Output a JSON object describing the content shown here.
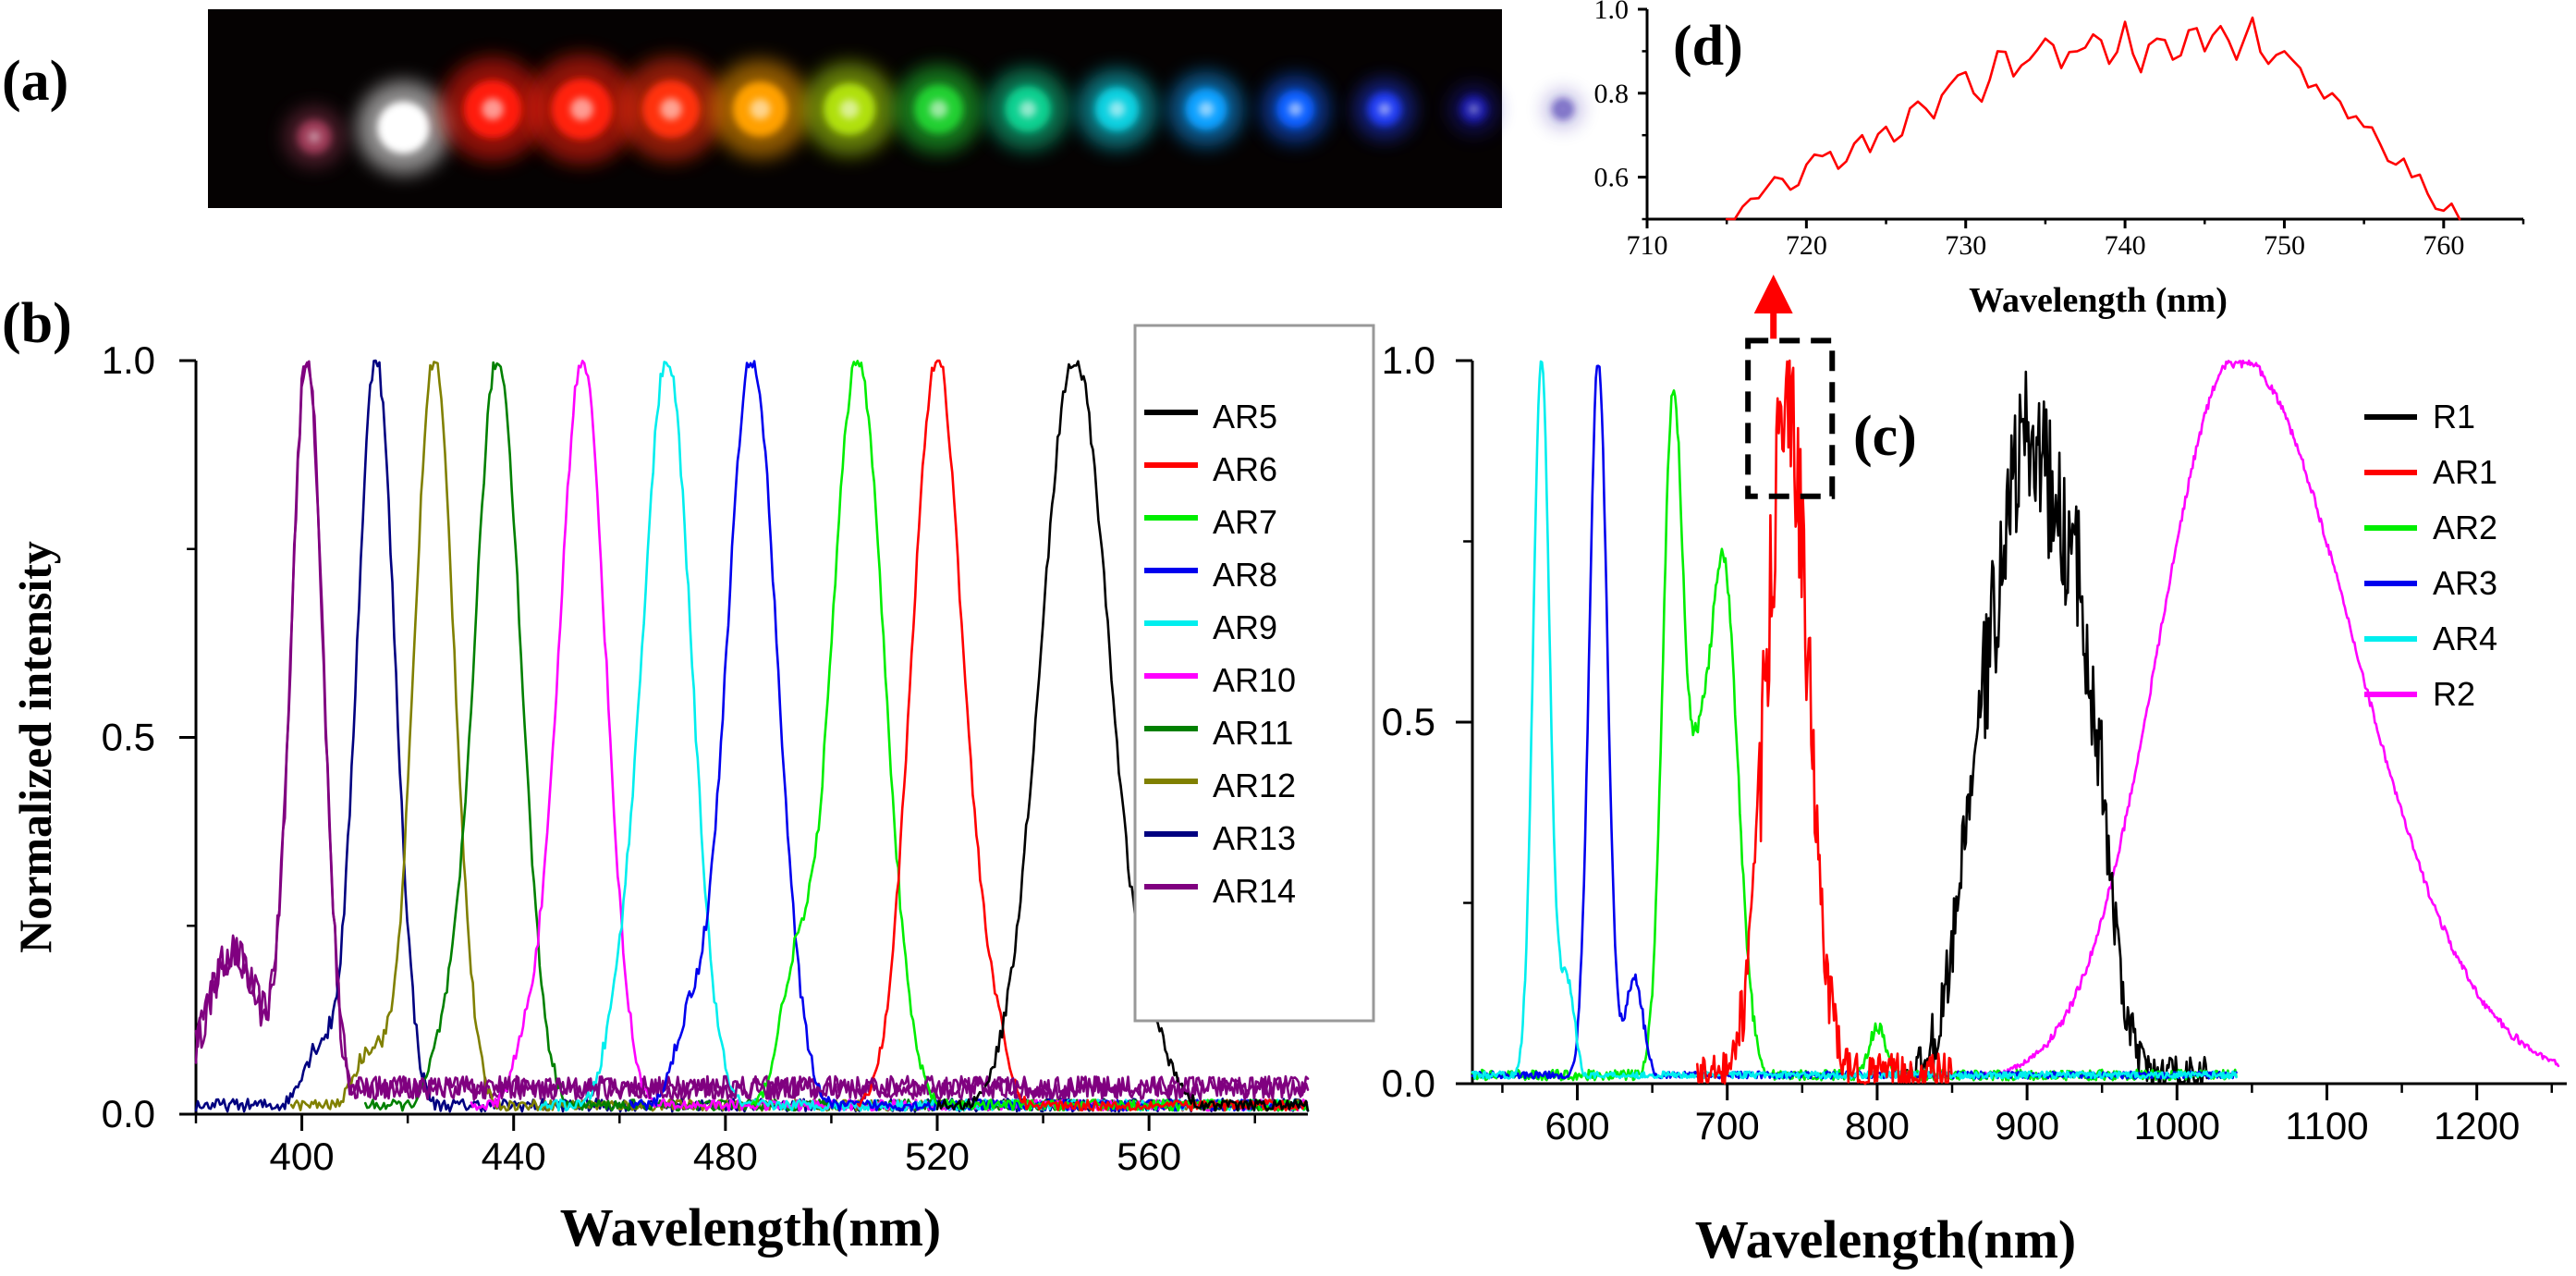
{
  "panel_labels": {
    "a": "(a)",
    "b": "(b)",
    "c": "(c)",
    "d": "(d)"
  },
  "photo": {
    "spots": [
      {
        "color": "#c04a6c",
        "size": 0.55,
        "brightness": 0.7
      },
      {
        "color": "#ffffff",
        "size": 0.85,
        "brightness": 1.0
      },
      {
        "color": "#ff1a0a",
        "size": 0.95,
        "brightness": 1.0
      },
      {
        "color": "#ff2010",
        "size": 1.0,
        "brightness": 1.0
      },
      {
        "color": "#ff3010",
        "size": 0.95,
        "brightness": 1.0
      },
      {
        "color": "#ffa000",
        "size": 0.9,
        "brightness": 1.0
      },
      {
        "color": "#b0e010",
        "size": 0.85,
        "brightness": 1.0
      },
      {
        "color": "#20d030",
        "size": 0.8,
        "brightness": 1.0
      },
      {
        "color": "#10d090",
        "size": 0.75,
        "brightness": 1.0
      },
      {
        "color": "#10d0e0",
        "size": 0.72,
        "brightness": 1.0
      },
      {
        "color": "#10a0ff",
        "size": 0.68,
        "brightness": 1.0
      },
      {
        "color": "#1060ff",
        "size": 0.62,
        "brightness": 1.0
      },
      {
        "color": "#2040ff",
        "size": 0.55,
        "brightness": 0.9
      },
      {
        "color": "#2020d0",
        "size": 0.45,
        "brightness": 0.7
      },
      {
        "color": "#2010a0",
        "size": 0.35,
        "brightness": 0.5
      }
    ]
  },
  "chart_data": [
    {
      "id": "b",
      "type": "line",
      "xlabel": "Wavelength(nm)",
      "ylabel": "Normalized intensity",
      "xlim": [
        380,
        590
      ],
      "ylim": [
        0.0,
        1.0
      ],
      "xticks": [
        400,
        440,
        480,
        520,
        560
      ],
      "yticks": [
        0.0,
        0.5,
        1.0
      ],
      "ytick_labels": [
        "0.0",
        "0.5",
        "1.0"
      ],
      "legend_position": "right",
      "series": [
        {
          "name": "AR5",
          "color": "#000000",
          "center": 546,
          "width": 6.5,
          "x_start": 520,
          "x_end": 590,
          "noise": 0.012,
          "shoulder": {
            "offset": 15,
            "width": 4,
            "amp": 0.06
          }
        },
        {
          "name": "AR6",
          "color": "#ff0000",
          "center": 520,
          "width": 4.8,
          "x_start": 505,
          "x_end": 590,
          "noise": 0.012,
          "shoulder": {
            "offset": 10,
            "width": 3,
            "amp": 0.09
          }
        },
        {
          "name": "AR7",
          "color": "#00ee00",
          "center": 505,
          "width": 5.0,
          "x_start": 485,
          "x_end": 590,
          "noise": 0.012,
          "shoulder": {
            "offset": -12,
            "width": 3,
            "amp": 0.16
          }
        },
        {
          "name": "AR8",
          "color": "#0000ee",
          "center": 485,
          "width": 4.8,
          "x_start": 462,
          "x_end": 590,
          "noise": 0.012,
          "shoulder": {
            "offset": -12,
            "width": 3,
            "amp": 0.1
          }
        },
        {
          "name": "AR9",
          "color": "#00eeee",
          "center": 469,
          "width": 4.6,
          "x_start": 445,
          "x_end": 590,
          "noise": 0.012,
          "shoulder": {
            "offset": -9,
            "width": 3,
            "amp": 0.08
          }
        },
        {
          "name": "AR10",
          "color": "#ff00ff",
          "center": 453,
          "width": 4.4,
          "x_start": 432,
          "x_end": 590,
          "noise": 0.012,
          "shoulder": {
            "offset": -10,
            "width": 3,
            "amp": 0.08
          }
        },
        {
          "name": "AR11",
          "color": "#008000",
          "center": 437,
          "width": 4.4,
          "x_start": 412,
          "x_end": 590,
          "noise": 0.012,
          "shoulder": {
            "offset": -10,
            "width": 3,
            "amp": 0.07
          }
        },
        {
          "name": "AR12",
          "color": "#808000",
          "center": 425,
          "width": 3.8,
          "x_start": 398,
          "x_end": 590,
          "noise": 0.012,
          "shoulder": {
            "offset": -12,
            "width": 3,
            "amp": 0.08
          }
        },
        {
          "name": "AR13",
          "color": "#000080",
          "center": 414,
          "width": 3.6,
          "x_start": 380,
          "x_end": 590,
          "noise": 0.014,
          "shoulder": {
            "offset": -11,
            "width": 3,
            "amp": 0.08
          }
        },
        {
          "name": "AR14",
          "color": "#800080",
          "center": 401,
          "width": 3.0,
          "x_start": 380,
          "x_end": 590,
          "noise": 0.026,
          "baseline": 0.035,
          "shoulder": {
            "offset": -14,
            "width": 5,
            "amp": 0.2
          }
        }
      ]
    },
    {
      "id": "c",
      "type": "line",
      "xlabel": "Wavelength(nm)",
      "xlim": [
        530,
        1260
      ],
      "ylim": [
        0.0,
        1.0
      ],
      "xticks": [
        600,
        700,
        800,
        900,
        1000,
        1100,
        1200
      ],
      "yticks": [
        0.0,
        0.5,
        1.0
      ],
      "ytick_labels": [
        "0.0",
        "0.5",
        "1.0"
      ],
      "legend_position": "right",
      "series": [
        {
          "name": "R1",
          "color": "#000000",
          "x_start": 820,
          "x_end": 1020,
          "noise": 0.045,
          "noise_mask": [
            870,
            950
          ],
          "peaks": [
            {
              "center": 900,
              "width": 26,
              "amp": 0.88
            },
            {
              "center": 940,
              "width": 14,
              "amp": 0.35
            },
            {
              "center": 862,
              "width": 10,
              "amp": 0.1
            }
          ]
        },
        {
          "name": "AR1",
          "color": "#ff0000",
          "x_start": 680,
          "x_end": 850,
          "noise": 0.05,
          "noise_mask": [
            720,
            760
          ],
          "peaks": [
            {
              "center": 740,
              "width": 14,
              "amp": 0.93
            }
          ]
        },
        {
          "name": "AR2",
          "color": "#00ee00",
          "x_start": 530,
          "x_end": 1040,
          "noise": 0.012,
          "peaks": [
            {
              "center": 664,
              "width": 7,
              "amp": 0.95
            },
            {
              "center": 697,
              "width": 10,
              "amp": 0.72
            },
            {
              "center": 680,
              "width": 6,
              "amp": 0.25
            },
            {
              "center": 800,
              "width": 6,
              "amp": 0.07
            }
          ]
        },
        {
          "name": "AR3",
          "color": "#0000ee",
          "x_start": 530,
          "x_end": 1040,
          "noise": 0.008,
          "peaks": [
            {
              "center": 614,
              "width": 6,
              "amp": 1.0
            },
            {
              "center": 638,
              "width": 6,
              "amp": 0.14
            }
          ]
        },
        {
          "name": "AR4",
          "color": "#00eeee",
          "x_start": 530,
          "x_end": 1040,
          "noise": 0.008,
          "peaks": [
            {
              "center": 576,
              "width": 5.5,
              "amp": 1.0
            },
            {
              "center": 593,
              "width": 5,
              "amp": 0.14
            }
          ]
        },
        {
          "name": "R2",
          "color": "#ff00ff",
          "x_start": 860,
          "x_end": 1255,
          "noise": 0.006,
          "peaks": [
            {
              "center": 1040,
              "width": 52,
              "amp": 1.0,
              "right_width": 78
            }
          ]
        }
      ],
      "inset_box": {
        "x": [
          720,
          770
        ],
        "y": [
          0.82,
          1.02
        ]
      }
    },
    {
      "id": "d",
      "type": "line",
      "xlabel": "Wavelength (nm)",
      "xlim": [
        710,
        765
      ],
      "ylim": [
        0.5,
        1.0
      ],
      "xticks": [
        710,
        720,
        730,
        740,
        750,
        760
      ],
      "yticks": [
        0.6,
        0.8,
        1.0
      ],
      "ytick_labels": [
        "0.6",
        "0.8",
        "1.0"
      ],
      "series": [
        {
          "name": "",
          "color": "#ff0000",
          "x": [
            715,
            716,
            717,
            718,
            719,
            720,
            721,
            722,
            723,
            724,
            725,
            726,
            727,
            728,
            729,
            730,
            731,
            732,
            733,
            734,
            735,
            736,
            737,
            738,
            739,
            740,
            741,
            742,
            743,
            744,
            745,
            746,
            747,
            748,
            749,
            750,
            751,
            752,
            753,
            754,
            755,
            756,
            757,
            758,
            759,
            760,
            761
          ],
          "y": [
            0.5,
            0.53,
            0.55,
            0.6,
            0.57,
            0.63,
            0.65,
            0.62,
            0.68,
            0.66,
            0.72,
            0.7,
            0.78,
            0.74,
            0.82,
            0.85,
            0.78,
            0.9,
            0.84,
            0.88,
            0.93,
            0.86,
            0.9,
            0.94,
            0.87,
            0.97,
            0.85,
            0.93,
            0.88,
            0.95,
            0.9,
            0.96,
            0.88,
            0.98,
            0.87,
            0.9,
            0.86,
            0.82,
            0.8,
            0.74,
            0.72,
            0.68,
            0.63,
            0.6,
            0.56,
            0.52,
            0.5
          ]
        }
      ]
    }
  ]
}
